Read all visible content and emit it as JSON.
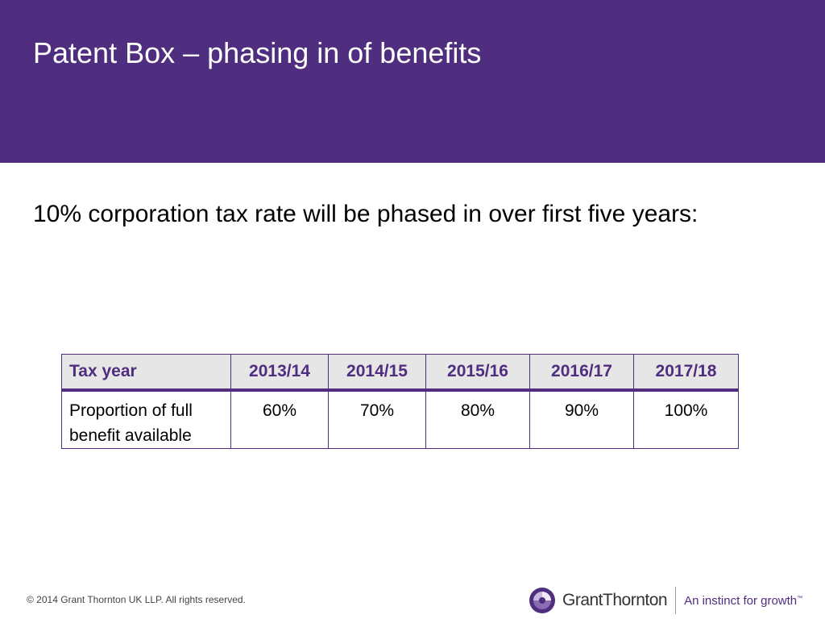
{
  "slide": {
    "title": "Patent Box – phasing in of benefits",
    "body_text": "10% corporation tax rate will be phased in over first five years:"
  },
  "table": {
    "header": [
      "Tax year",
      "2013/14",
      "2014/15",
      "2015/16",
      "2016/17",
      "2017/18"
    ],
    "row_label": "Proportion of full benefit available",
    "values": [
      "60%",
      "70%",
      "80%",
      "90%",
      "100%"
    ]
  },
  "footer": {
    "copyright": "© 2014 Grant Thornton UK LLP. All rights reserved.",
    "logo_name": "GrantThornton",
    "tagline": "An instinct for growth",
    "tagline_tm": "™"
  },
  "colors": {
    "brand_purple": "#4f2d7f",
    "header_row_bg": "#e6e6e6"
  }
}
